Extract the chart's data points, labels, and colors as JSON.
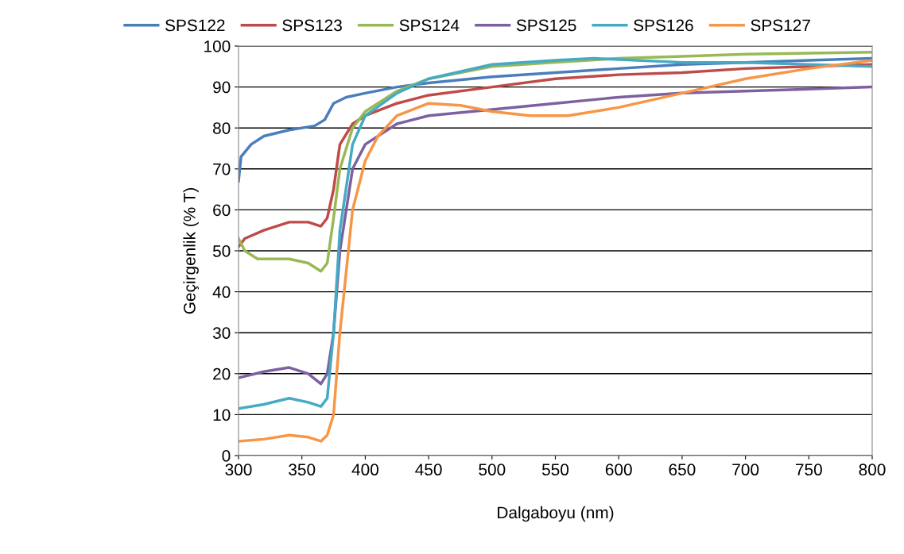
{
  "chart_data": {
    "type": "line",
    "xlabel": "Dalgaboyu (nm)",
    "ylabel": "Geçirgenlik (% T)",
    "xlim": [
      300,
      800
    ],
    "xticks": [
      300,
      350,
      400,
      450,
      500,
      550,
      600,
      650,
      700,
      750,
      800
    ],
    "ylim": [
      0,
      100
    ],
    "yticks": [
      0,
      10,
      20,
      30,
      40,
      50,
      60,
      70,
      80,
      90,
      100
    ],
    "grid": "y",
    "legend": "top",
    "marker": "none",
    "line_style": "solid",
    "series": [
      {
        "name": "SPS122",
        "color": "#4a7ebb",
        "x": [
          300,
          302,
          310,
          320,
          340,
          360,
          368,
          375,
          385,
          400,
          425,
          450,
          500,
          550,
          600,
          650,
          700,
          750,
          800
        ],
        "values": [
          67,
          73,
          76,
          78,
          79.5,
          80.5,
          82,
          86,
          87.5,
          88.5,
          90,
          91,
          92.5,
          93.5,
          94.5,
          95.5,
          96,
          96.5,
          97
        ]
      },
      {
        "name": "SPS123",
        "color": "#be4b48",
        "x": [
          300,
          305,
          320,
          340,
          355,
          365,
          370,
          375,
          380,
          390,
          400,
          425,
          450,
          500,
          550,
          600,
          650,
          700,
          800
        ],
        "values": [
          51,
          53,
          55,
          57,
          57,
          56,
          58,
          65,
          76,
          81,
          83,
          86,
          88,
          90,
          92,
          93,
          93.5,
          94.5,
          95.5
        ]
      },
      {
        "name": "SPS124",
        "color": "#98b954",
        "x": [
          300,
          305,
          315,
          340,
          355,
          365,
          370,
          375,
          380,
          390,
          400,
          425,
          450,
          500,
          550,
          600,
          650,
          700,
          800
        ],
        "values": [
          53,
          50,
          48,
          48,
          47,
          45,
          47,
          58,
          70,
          80,
          84,
          89,
          92,
          95,
          96,
          97,
          97.5,
          98,
          98.5
        ]
      },
      {
        "name": "SPS125",
        "color": "#7d60a0",
        "x": [
          300,
          320,
          340,
          355,
          365,
          370,
          375,
          380,
          390,
          400,
          425,
          450,
          500,
          550,
          600,
          650,
          700,
          800
        ],
        "values": [
          19,
          20.5,
          21.5,
          20,
          17.5,
          20,
          30,
          50,
          70,
          76,
          81,
          83,
          84.5,
          86,
          87.5,
          88.5,
          89,
          90
        ]
      },
      {
        "name": "SPS126",
        "color": "#46aac5",
        "x": [
          300,
          320,
          340,
          355,
          365,
          370,
          375,
          380,
          390,
          400,
          425,
          450,
          500,
          550,
          580,
          650,
          700,
          750,
          800
        ],
        "values": [
          11.5,
          12.5,
          14,
          13,
          12,
          14,
          30,
          55,
          76,
          83,
          88.5,
          92,
          95.5,
          96.5,
          97,
          96,
          96,
          95.5,
          95
        ]
      },
      {
        "name": "SPS127",
        "color": "#f79646",
        "x": [
          300,
          320,
          340,
          355,
          365,
          370,
          375,
          380,
          390,
          400,
          410,
          425,
          450,
          475,
          500,
          530,
          560,
          600,
          650,
          700,
          750,
          800
        ],
        "values": [
          3.5,
          4,
          5,
          4.5,
          3.5,
          5,
          10,
          30,
          60,
          72,
          78,
          83,
          86,
          85.5,
          84,
          83,
          83,
          85,
          88.5,
          92,
          94.5,
          96.5
        ]
      }
    ]
  }
}
